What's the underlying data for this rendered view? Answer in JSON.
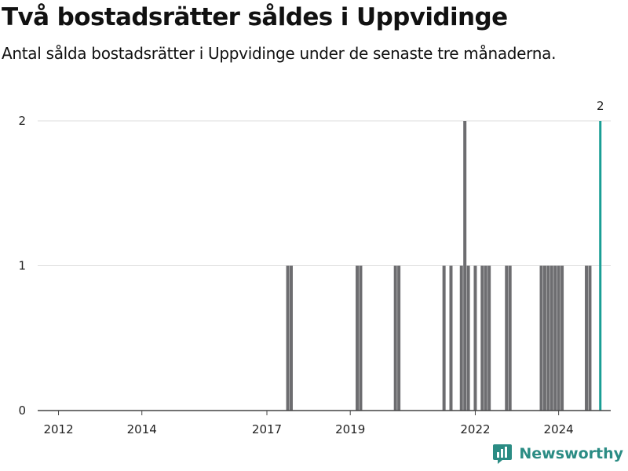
{
  "header": {
    "title": "Två bostadsrätter såldes i Uppvidinge",
    "subtitle": "Antal sålda bostadsrätter i Uppvidinge under de senaste tre månaderna."
  },
  "logo": {
    "name": "Newsworthy",
    "icon": "newsworthy-logo-icon"
  },
  "colors": {
    "bar": "#6d6d70",
    "highlight": "#1a9e95",
    "grid": "#dcdcdc",
    "axis": "#444444",
    "brand": "#2b8c84"
  },
  "chart_data": {
    "type": "bar",
    "title": "Två bostadsrätter såldes i Uppvidinge",
    "subtitle": "Antal sålda bostadsrätter i Uppvidinge under de senaste tre månaderna.",
    "xlabel": "",
    "ylabel": "",
    "x_axis": {
      "type": "date",
      "range": [
        "2011-07",
        "2025-04"
      ],
      "tick_labels": [
        "2012",
        "2014",
        "2017",
        "2019",
        "2022",
        "2024"
      ]
    },
    "ylim": [
      0,
      2
    ],
    "y_ticks": [
      0,
      1,
      2
    ],
    "grid": "horizontal",
    "legend": "none",
    "x": [
      "2017-07",
      "2017-08",
      "2019-03",
      "2019-04",
      "2020-02",
      "2020-03",
      "2021-04",
      "2021-06",
      "2021-09",
      "2021-10",
      "2021-11",
      "2022-01",
      "2022-03",
      "2022-04",
      "2022-05",
      "2022-10",
      "2022-11",
      "2023-08",
      "2023-09",
      "2023-10",
      "2023-11",
      "2023-12",
      "2024-01",
      "2024-02",
      "2024-09",
      "2024-10",
      "2025-01"
    ],
    "values": [
      1,
      1,
      1,
      1,
      1,
      1,
      1,
      1,
      1,
      2,
      1,
      1,
      1,
      1,
      1,
      1,
      1,
      1,
      1,
      1,
      1,
      1,
      1,
      1,
      1,
      1,
      2
    ],
    "highlight": {
      "x": "2025-01",
      "value": 2,
      "label": "2"
    }
  }
}
